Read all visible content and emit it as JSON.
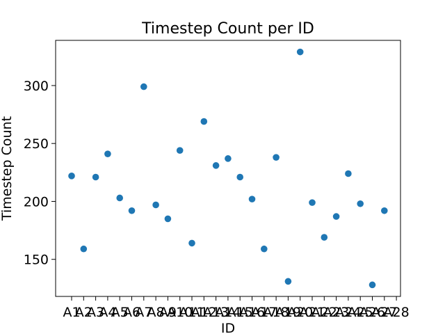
{
  "chart_data": {
    "type": "scatter",
    "title": "Timestep Count per ID",
    "xlabel": "ID",
    "ylabel": "Timestep Count",
    "categories": [
      "A1",
      "A2",
      "A3",
      "A4",
      "A5",
      "A6",
      "A7",
      "A8",
      "A9",
      "A10",
      "A11",
      "A12",
      "A13",
      "A14",
      "A15",
      "A16",
      "A17",
      "A18",
      "A19",
      "A20",
      "A21",
      "A22",
      "A23",
      "A24",
      "A25",
      "A26",
      "A27",
      "A28"
    ],
    "values": [
      222,
      159,
      221,
      241,
      203,
      192,
      299,
      197,
      185,
      244,
      164,
      269,
      231,
      237,
      221,
      202,
      159,
      238,
      131,
      329,
      199,
      169,
      187,
      224,
      198,
      128,
      192,
      null
    ],
    "ylim": [
      118,
      339
    ],
    "yticks": [
      150,
      200,
      250,
      300
    ],
    "grid": false,
    "legend": "none",
    "color": "#1f77b4"
  }
}
